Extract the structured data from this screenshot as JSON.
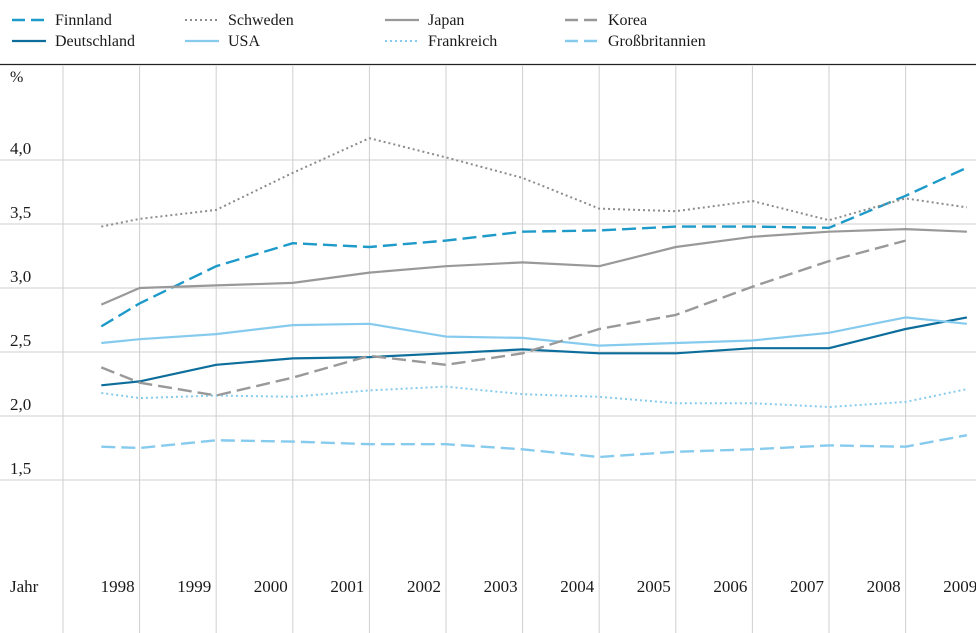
{
  "chart_data": {
    "type": "line",
    "title": "",
    "ylabel": "%",
    "xlabel": "Jahr",
    "ylim": [
      1.0,
      4.5
    ],
    "yticks": [
      1.5,
      2.0,
      2.5,
      3.0,
      3.5,
      4.0
    ],
    "ytick_labels": [
      "1,5",
      "2,0",
      "2,5",
      "3,0",
      "3,5",
      "4,0"
    ],
    "x_tick_labels": [
      "1998",
      "1999",
      "2000",
      "2001",
      "2002",
      "2003",
      "2004",
      "2005",
      "2006",
      "2007",
      "2008",
      "2009"
    ],
    "grid": true,
    "legend_position": "top",
    "series": [
      {
        "name": "Finnland",
        "color": "#1d9ac9",
        "dash": "long-dash",
        "points": [
          [
            1997.5,
            2.7
          ],
          [
            1998,
            2.88
          ],
          [
            1999,
            3.17
          ],
          [
            2000,
            3.35
          ],
          [
            2001,
            3.32
          ],
          [
            2002,
            3.37
          ],
          [
            2003,
            3.44
          ],
          [
            2004,
            3.45
          ],
          [
            2005,
            3.48
          ],
          [
            2006,
            3.48
          ],
          [
            2007,
            3.47
          ],
          [
            2008,
            3.72
          ],
          [
            2008.8,
            3.94
          ]
        ]
      },
      {
        "name": "Deutschland",
        "color": "#0d6e9c",
        "dash": "solid",
        "points": [
          [
            1997.5,
            2.24
          ],
          [
            1998,
            2.27
          ],
          [
            1999,
            2.4
          ],
          [
            2000,
            2.45
          ],
          [
            2001,
            2.46
          ],
          [
            2002,
            2.49
          ],
          [
            2003,
            2.52
          ],
          [
            2004,
            2.49
          ],
          [
            2005,
            2.49
          ],
          [
            2006,
            2.53
          ],
          [
            2007,
            2.53
          ],
          [
            2008,
            2.68
          ],
          [
            2008.8,
            2.77
          ]
        ]
      },
      {
        "name": "Schweden",
        "color": "#8c8c8c",
        "dash": "dotted",
        "points": [
          [
            1997.5,
            3.48
          ],
          [
            1998,
            3.54
          ],
          [
            1999,
            3.61
          ],
          [
            2000,
            3.9
          ],
          [
            2001,
            4.17
          ],
          [
            2002,
            4.02
          ],
          [
            2003,
            3.86
          ],
          [
            2004,
            3.62
          ],
          [
            2005,
            3.6
          ],
          [
            2006,
            3.68
          ],
          [
            2007,
            3.53
          ],
          [
            2008,
            3.7
          ],
          [
            2008.8,
            3.63
          ]
        ]
      },
      {
        "name": "USA",
        "color": "#86cbee",
        "dash": "solid",
        "points": [
          [
            1997.5,
            2.57
          ],
          [
            1998,
            2.6
          ],
          [
            1999,
            2.64
          ],
          [
            2000,
            2.71
          ],
          [
            2001,
            2.72
          ],
          [
            2002,
            2.62
          ],
          [
            2003,
            2.61
          ],
          [
            2004,
            2.55
          ],
          [
            2005,
            2.57
          ],
          [
            2006,
            2.59
          ],
          [
            2007,
            2.65
          ],
          [
            2008,
            2.77
          ],
          [
            2008.8,
            2.72
          ]
        ]
      },
      {
        "name": "Japan",
        "color": "#999999",
        "dash": "solid",
        "points": [
          [
            1997.5,
            2.87
          ],
          [
            1998,
            3.0
          ],
          [
            1999,
            3.02
          ],
          [
            2000,
            3.04
          ],
          [
            2001,
            3.12
          ],
          [
            2002,
            3.17
          ],
          [
            2003,
            3.2
          ],
          [
            2004,
            3.17
          ],
          [
            2005,
            3.32
          ],
          [
            2006,
            3.4
          ],
          [
            2007,
            3.44
          ],
          [
            2008,
            3.46
          ],
          [
            2008.8,
            3.44
          ]
        ]
      },
      {
        "name": "Frankreich",
        "color": "#86cbee",
        "dash": "dotted",
        "points": [
          [
            1997.5,
            2.18
          ],
          [
            1998,
            2.14
          ],
          [
            1999,
            2.16
          ],
          [
            2000,
            2.15
          ],
          [
            2001,
            2.2
          ],
          [
            2002,
            2.23
          ],
          [
            2003,
            2.17
          ],
          [
            2004,
            2.15
          ],
          [
            2005,
            2.1
          ],
          [
            2006,
            2.1
          ],
          [
            2007,
            2.07
          ],
          [
            2008,
            2.11
          ],
          [
            2008.8,
            2.21
          ]
        ]
      },
      {
        "name": "Korea",
        "color": "#999999",
        "dash": "long-dash",
        "points": [
          [
            1997.5,
            2.38
          ],
          [
            1998,
            2.26
          ],
          [
            1999,
            2.16
          ],
          [
            2000,
            2.3
          ],
          [
            2001,
            2.47
          ],
          [
            2002,
            2.4
          ],
          [
            2003,
            2.49
          ],
          [
            2004,
            2.68
          ],
          [
            2005,
            2.79
          ],
          [
            2006,
            3.01
          ],
          [
            2007,
            3.21
          ],
          [
            2008,
            3.37
          ]
        ]
      },
      {
        "name": "Großbritannien",
        "color": "#86cbee",
        "dash": "long-dash",
        "points": [
          [
            1997.5,
            1.76
          ],
          [
            1998,
            1.75
          ],
          [
            1999,
            1.81
          ],
          [
            2000,
            1.8
          ],
          [
            2001,
            1.78
          ],
          [
            2002,
            1.78
          ],
          [
            2003,
            1.74
          ],
          [
            2004,
            1.68
          ],
          [
            2005,
            1.72
          ],
          [
            2006,
            1.74
          ],
          [
            2007,
            1.77
          ],
          [
            2008,
            1.76
          ],
          [
            2008.8,
            1.85
          ]
        ]
      }
    ]
  }
}
